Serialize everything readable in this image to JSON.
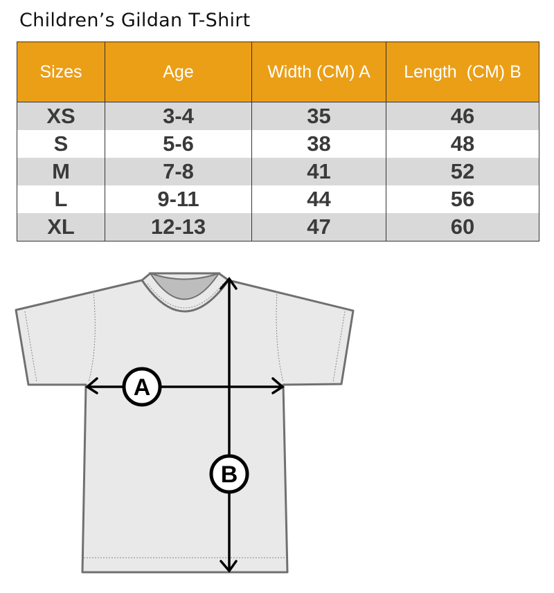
{
  "title": "Children’s Gildan T-Shirt",
  "table": {
    "headers": [
      "Sizes",
      "Age",
      "Width (CM) A",
      "Length  (CM) B"
    ],
    "rows": [
      [
        "XS",
        "3-4",
        "35",
        "46"
      ],
      [
        "S",
        "5-6",
        "38",
        "48"
      ],
      [
        "M",
        "7-8",
        "41",
        "52"
      ],
      [
        "L",
        "9-11",
        "44",
        "56"
      ],
      [
        "XL",
        "12-13",
        "47",
        "60"
      ]
    ]
  },
  "diagram": {
    "width_label": "A",
    "length_label": "B"
  },
  "colors": {
    "header": "#eb9f17",
    "row_alt": "#d9d9d9",
    "shirt": "#e9e9e9",
    "outline": "#707070"
  }
}
